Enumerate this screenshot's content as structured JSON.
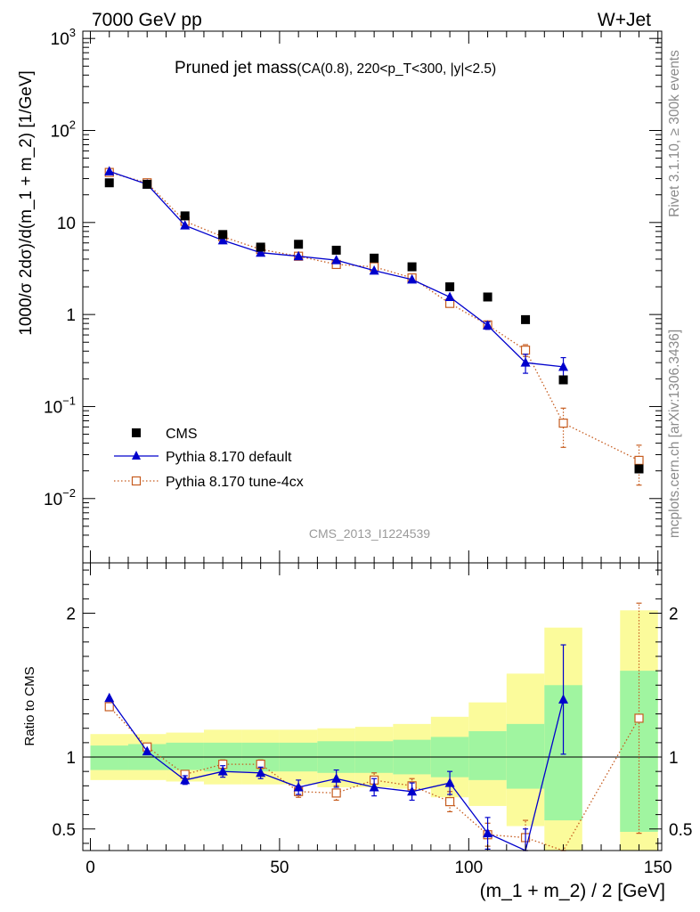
{
  "header": {
    "left": "7000 GeV pp",
    "right": "W+Jet"
  },
  "side_labels": {
    "rivet": "Rivet 3.1.10, ≥ 300k events",
    "mcplots": "mcplots.cern.ch [arXiv:1306.3436]"
  },
  "chart_data": [
    {
      "type": "scatter",
      "title": "Pruned jet mass",
      "subtitle": "(CA(0.8), 220<p_T<300, |y|<2.5)",
      "ylabel": "1000/σ 2dσ)/d(m_1 + m_2) [1/GeV]",
      "xlabel": "",
      "watermark": "CMS_2013_I1224539",
      "x_range": [
        0,
        150
      ],
      "y_range": [
        0.002,
        1200
      ],
      "y_scale": "log",
      "y_ticks": [
        {
          "value": 0.01,
          "base": "10",
          "exp": "−2"
        },
        {
          "value": 0.1,
          "base": "10",
          "exp": "−1"
        },
        {
          "value": 1,
          "base": "1",
          "exp": ""
        },
        {
          "value": 10,
          "base": "10",
          "exp": ""
        },
        {
          "value": 100,
          "base": "10",
          "exp": "2"
        },
        {
          "value": 1000,
          "base": "10",
          "exp": "3"
        }
      ],
      "legend_position": "bottom-left",
      "legend": [
        "CMS",
        "Pythia 8.170 default",
        "Pythia 8.170 tune-4cx"
      ],
      "series": [
        {
          "name": "CMS",
          "color": "#000000",
          "marker": "square",
          "x": [
            5,
            15,
            25,
            35,
            45,
            55,
            65,
            75,
            85,
            95,
            105,
            115,
            125,
            145
          ],
          "values": [
            27,
            26,
            11.8,
            7.4,
            5.4,
            5.8,
            5.0,
            4.1,
            3.3,
            2.0,
            1.55,
            0.88,
            0.195,
            0.021
          ]
        },
        {
          "name": "Pythia 8.170 default",
          "color": "#0000cc",
          "marker": "triangle",
          "line": "solid",
          "x": [
            5,
            15,
            25,
            35,
            45,
            55,
            65,
            75,
            85,
            95,
            105,
            115,
            125
          ],
          "values": [
            36,
            26,
            9.3,
            6.4,
            4.7,
            4.3,
            3.9,
            3.0,
            2.4,
            1.55,
            0.76,
            0.3,
            0.27
          ],
          "err": [
            0,
            0,
            0,
            0,
            0,
            0,
            0,
            0,
            0,
            0,
            0.07,
            0.07,
            0.07
          ]
        },
        {
          "name": "Pythia 8.170 tune-4cx",
          "color": "#c65c1f",
          "marker": "open-square",
          "line": "dotted",
          "x": [
            5,
            15,
            25,
            35,
            45,
            55,
            65,
            75,
            85,
            95,
            105,
            115,
            125,
            145
          ],
          "values": [
            35,
            27,
            10.3,
            7.0,
            5.1,
            4.3,
            3.5,
            3.3,
            2.5,
            1.32,
            0.77,
            0.41,
            0.066,
            0.026
          ],
          "err": [
            0,
            0,
            0,
            0,
            0,
            0,
            0,
            0,
            0,
            0,
            0.08,
            0.06,
            0.03,
            0.012
          ]
        }
      ]
    },
    {
      "type": "line",
      "ylabel": "Ratio to CMS",
      "xlabel": "(m_1 + m_2) / 2 [GeV]",
      "x_range": [
        -2,
        151
      ],
      "x_ticks": [
        0,
        50,
        100,
        150
      ],
      "y_range": [
        0.35,
        2.35
      ],
      "y_ticks": [
        0.5,
        1,
        2
      ],
      "bands": {
        "inner_color": "#a0f5a0",
        "outer_color": "#fbfb9b",
        "bins": [
          {
            "x0": 0,
            "x1": 10,
            "in_lo": 0.91,
            "in_hi": 1.08,
            "out_lo": 0.84,
            "out_hi": 1.16
          },
          {
            "x0": 10,
            "x1": 20,
            "in_lo": 0.91,
            "in_hi": 1.09,
            "out_lo": 0.84,
            "out_hi": 1.16
          },
          {
            "x0": 20,
            "x1": 30,
            "in_lo": 0.91,
            "in_hi": 1.1,
            "out_lo": 0.83,
            "out_hi": 1.17
          },
          {
            "x0": 30,
            "x1": 40,
            "in_lo": 0.9,
            "in_hi": 1.1,
            "out_lo": 0.81,
            "out_hi": 1.19
          },
          {
            "x0": 40,
            "x1": 50,
            "in_lo": 0.9,
            "in_hi": 1.1,
            "out_lo": 0.81,
            "out_hi": 1.19
          },
          {
            "x0": 50,
            "x1": 60,
            "in_lo": 0.9,
            "in_hi": 1.1,
            "out_lo": 0.81,
            "out_hi": 1.19
          },
          {
            "x0": 60,
            "x1": 70,
            "in_lo": 0.89,
            "in_hi": 1.11,
            "out_lo": 0.79,
            "out_hi": 1.2
          },
          {
            "x0": 70,
            "x1": 80,
            "in_lo": 0.89,
            "in_hi": 1.11,
            "out_lo": 0.79,
            "out_hi": 1.21
          },
          {
            "x0": 80,
            "x1": 90,
            "in_lo": 0.88,
            "in_hi": 1.12,
            "out_lo": 0.78,
            "out_hi": 1.23
          },
          {
            "x0": 90,
            "x1": 100,
            "in_lo": 0.86,
            "in_hi": 1.14,
            "out_lo": 0.72,
            "out_hi": 1.28
          },
          {
            "x0": 100,
            "x1": 110,
            "in_lo": 0.84,
            "in_hi": 1.18,
            "out_lo": 0.66,
            "out_hi": 1.38
          },
          {
            "x0": 110,
            "x1": 120,
            "in_lo": 0.78,
            "in_hi": 1.23,
            "out_lo": 0.52,
            "out_hi": 1.58
          },
          {
            "x0": 120,
            "x1": 130,
            "in_lo": 0.56,
            "in_hi": 1.5,
            "out_lo": 0.35,
            "out_hi": 1.9
          },
          {
            "x0": 140,
            "x1": 150,
            "in_lo": 0.48,
            "in_hi": 1.6,
            "out_lo": 0.35,
            "out_hi": 2.02
          }
        ]
      },
      "series": [
        {
          "name": "Pythia 8.170 default",
          "color": "#0000cc",
          "marker": "triangle",
          "line": "solid",
          "x": [
            5,
            15,
            25,
            35,
            45,
            55,
            65,
            75,
            85,
            95,
            105,
            115,
            125
          ],
          "values": [
            1.41,
            1.04,
            0.84,
            0.9,
            0.89,
            0.79,
            0.85,
            0.79,
            0.76,
            0.82,
            0.47,
            0.3,
            1.4
          ],
          "err": [
            0,
            0,
            0.03,
            0.04,
            0.04,
            0.05,
            0.06,
            0.06,
            0.06,
            0.08,
            0.11,
            0.2,
            0.38
          ]
        },
        {
          "name": "Pythia 8.170 tune-4cx",
          "color": "#c65c1f",
          "marker": "open-square",
          "line": "dotted",
          "x": [
            5,
            15,
            25,
            35,
            45,
            55,
            65,
            75,
            85,
            95,
            105,
            115,
            125,
            145
          ],
          "values": [
            1.35,
            1.07,
            0.88,
            0.95,
            0.95,
            0.76,
            0.75,
            0.84,
            0.8,
            0.69,
            0.46,
            0.44,
            0.1,
            1.27
          ],
          "err": [
            0,
            0,
            0.02,
            0.03,
            0.03,
            0.04,
            0.05,
            0.05,
            0.05,
            0.07,
            0.08,
            0.12,
            0.1,
            0.8
          ]
        }
      ]
    }
  ]
}
